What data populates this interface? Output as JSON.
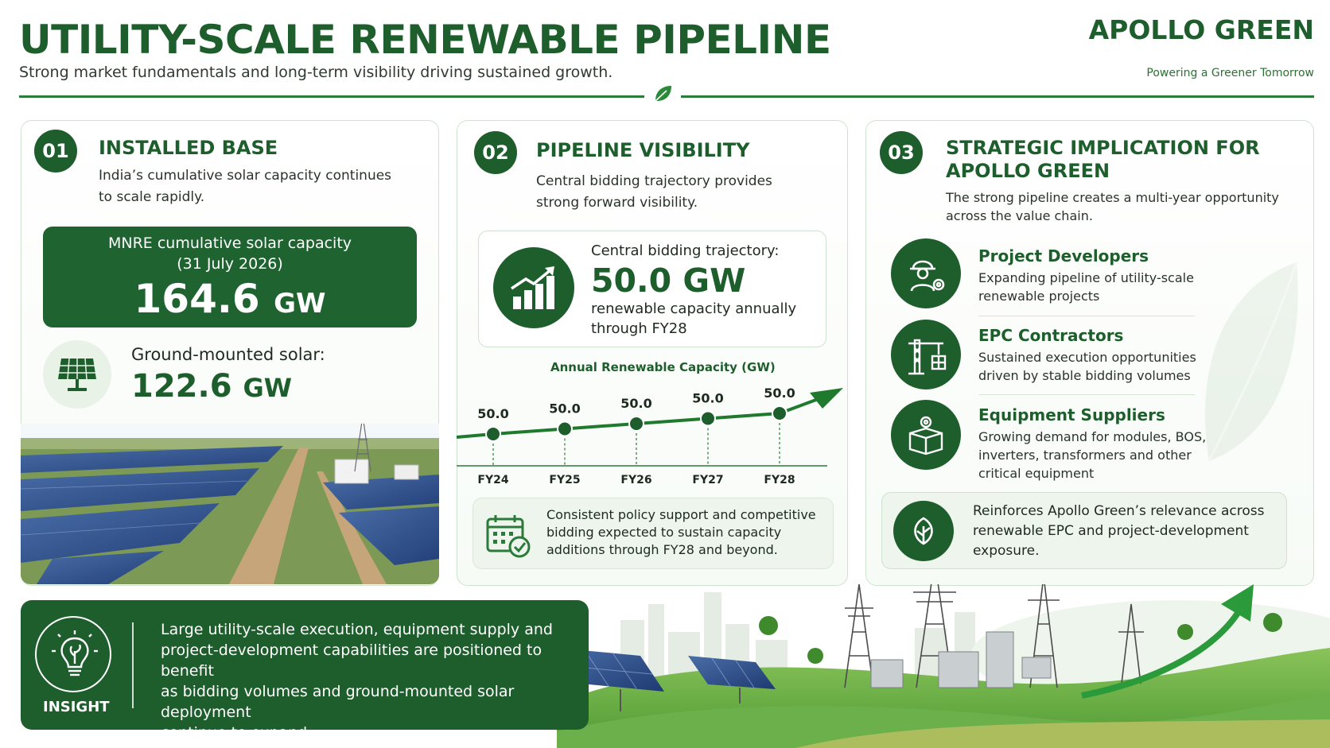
{
  "header": {
    "title": "UTILITY-SCALE RENEWABLE PIPELINE",
    "subtitle": "Strong market fundamentals and long-term visibility driving sustained growth.",
    "brand_name": "APOLLO GREEN",
    "brand_tagline": "Powering a Greener Tomorrow"
  },
  "card1": {
    "number": "01",
    "heading": "INSTALLED BASE",
    "text_line1": "India’s cumulative solar capacity continues",
    "text_line2": "to scale rapidly.",
    "mnre_label_line1": "MNRE cumulative solar capacity",
    "mnre_label_line2": "(31 July 2026)",
    "mnre_value": "164.6",
    "mnre_unit": "GW",
    "ground_label": "Ground-mounted solar:",
    "ground_value": "122.6",
    "ground_unit": "GW"
  },
  "card2": {
    "number": "02",
    "heading": "PIPELINE VISIBILITY",
    "text_line1": "Central bidding trajectory provides",
    "text_line2": "strong forward visibility.",
    "bid_label": "Central bidding trajectory:",
    "bid_value": "50.0 GW",
    "bid_sub_line1": "renewable capacity annually",
    "bid_sub_line2": "through FY28",
    "policy_line1": "Consistent policy support and competitive",
    "policy_line2": "bidding expected to sustain capacity",
    "policy_line3": "additions through FY28 and beyond."
  },
  "chart_data": {
    "type": "line",
    "title": "Annual Renewable Capacity (GW)",
    "categories": [
      "FY24",
      "FY25",
      "FY26",
      "FY27",
      "FY28"
    ],
    "values": [
      50.0,
      50.0,
      50.0,
      50.0,
      50.0
    ],
    "value_labels": [
      "50.0",
      "50.0",
      "50.0",
      "50.0",
      "50.0"
    ],
    "color": "#1f7a2e",
    "grid": false
  },
  "card3": {
    "number": "03",
    "heading_line1": "STRATEGIC IMPLICATION FOR",
    "heading_line2": "APOLLO GREEN",
    "text_line1": "The strong pipeline creates a multi-year opportunity",
    "text_line2": "across the value chain.",
    "items": [
      {
        "title": "Project Developers",
        "line1": "Expanding pipeline of utility-scale",
        "line2": "renewable projects",
        "line3": "",
        "icon": "worker-gear-icon"
      },
      {
        "title": "EPC Contractors",
        "line1": "Sustained execution opportunities",
        "line2": "driven by stable bidding volumes",
        "line3": "",
        "icon": "crane-icon"
      },
      {
        "title": "Equipment Suppliers",
        "line1": "Growing demand for modules, BOS,",
        "line2": "inverters, transformers and other",
        "line3": "critical equipment",
        "icon": "box-gear-icon"
      }
    ],
    "reinforce_line1": "Reinforces Apollo Green’s relevance across",
    "reinforce_line2": "renewable EPC and project-development",
    "reinforce_line3": "exposure."
  },
  "insight": {
    "label": "INSIGHT",
    "line1": "Large utility-scale execution, equipment supply and",
    "line2": "project-development capabilities are positioned to benefit",
    "line3": "as bidding volumes and ground-mounted solar deployment",
    "line4": "continue to expand."
  },
  "colors": {
    "brand_green": "#1d5e2c",
    "accent_green": "#2a7a3a",
    "light_green": "#eef5ec"
  }
}
